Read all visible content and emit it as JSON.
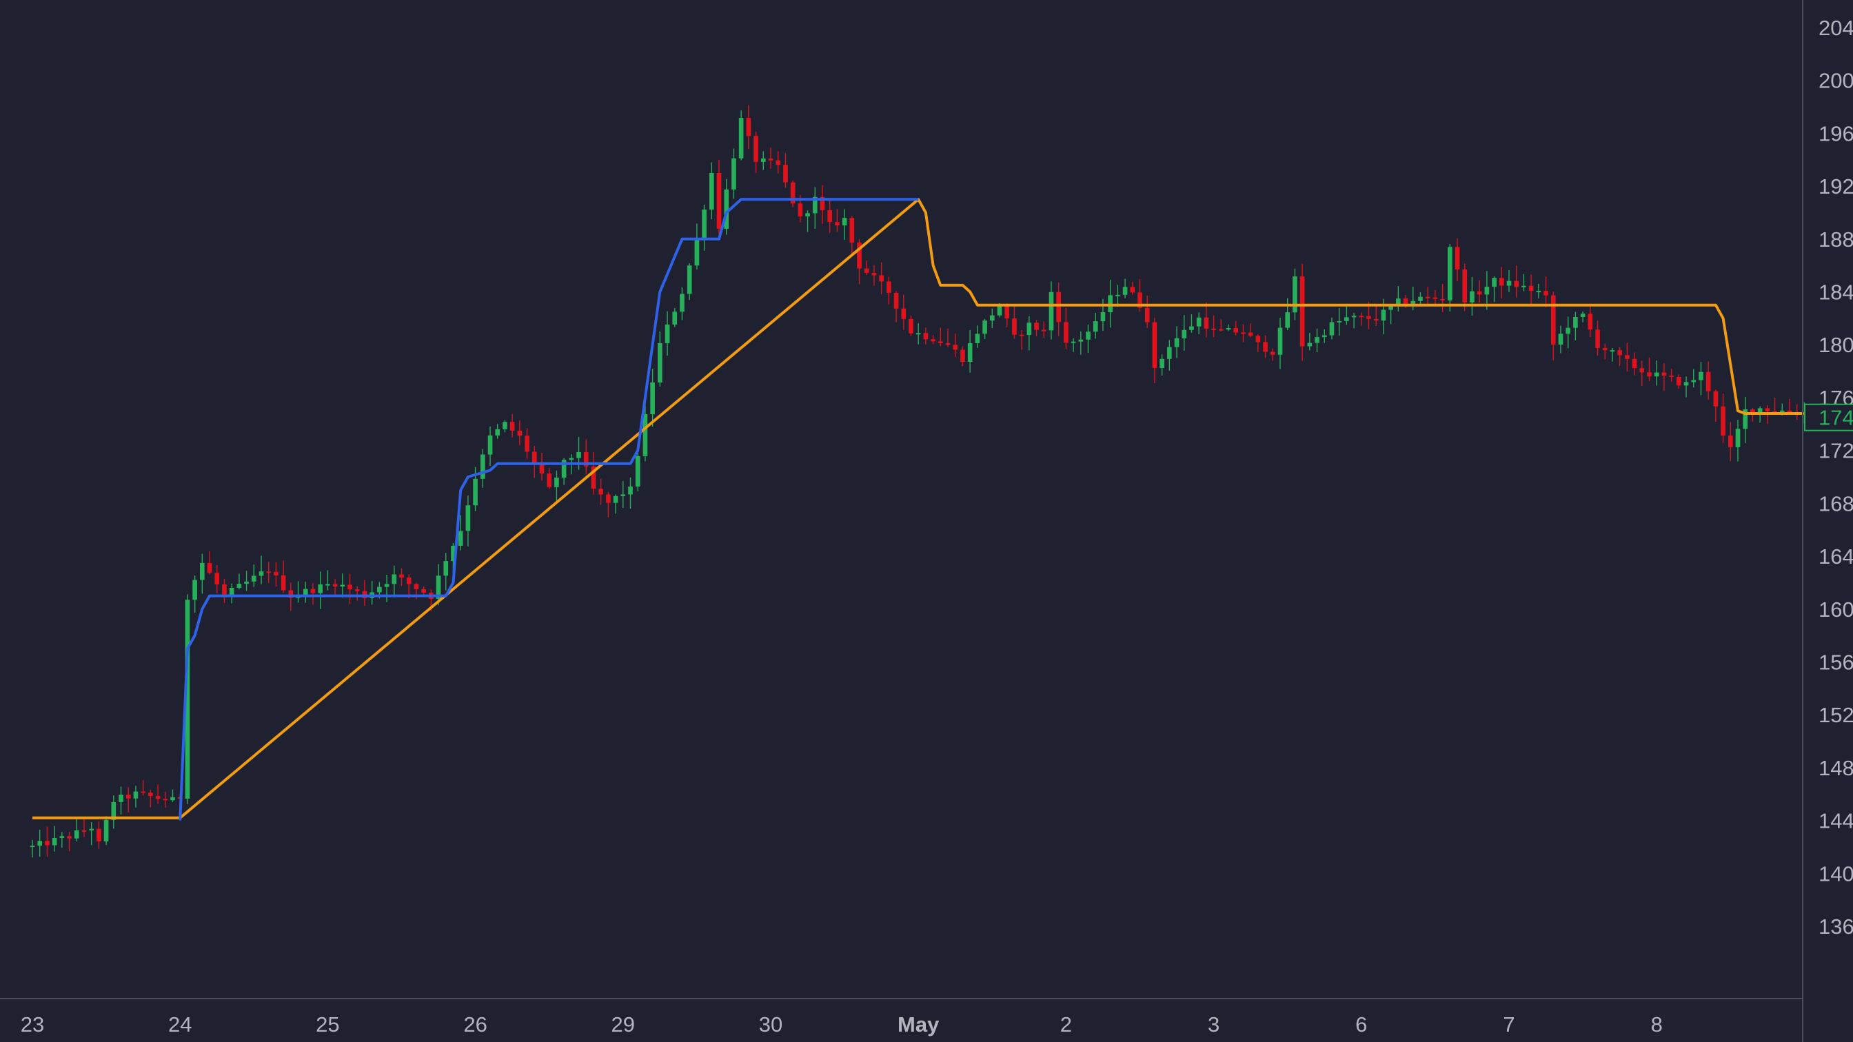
{
  "chart_data": {
    "type": "candlestick",
    "title": "",
    "xlabel": "",
    "ylabel": "",
    "ylim": [
      133,
      206
    ],
    "grid": false,
    "colors": {
      "background": "#1f2130",
      "up": "#26b05a",
      "down": "#e0121c",
      "trail_up": "#2e62e8",
      "trail_down": "#f39c12",
      "axis_text": "#b2b5be",
      "axis_line": "#4a4d5a",
      "price_box": "#26b05a"
    },
    "x_tick_labels": [
      {
        "label": "23",
        "bold": false
      },
      {
        "label": "24",
        "bold": false
      },
      {
        "label": "25",
        "bold": false
      },
      {
        "label": "26",
        "bold": false
      },
      {
        "label": "29",
        "bold": false
      },
      {
        "label": "30",
        "bold": false
      },
      {
        "label": "May",
        "bold": true
      },
      {
        "label": "2",
        "bold": false
      },
      {
        "label": "3",
        "bold": false
      },
      {
        "label": "6",
        "bold": false
      },
      {
        "label": "7",
        "bold": false
      },
      {
        "label": "8",
        "bold": false
      }
    ],
    "y_tick_labels": [
      "204",
      "200",
      "196",
      "192",
      "188",
      "184",
      "180",
      "176",
      "172",
      "168",
      "164",
      "160",
      "156",
      "152",
      "148",
      "144",
      "140",
      "136"
    ],
    "y_tick_values": [
      204,
      200,
      196,
      192,
      188,
      184,
      180,
      176,
      172,
      168,
      164,
      160,
      156,
      152,
      148,
      144,
      140,
      136
    ],
    "last_price_label": "174",
    "last_price_value": 174.5,
    "candles_per_day": 20,
    "candle_anchors": [
      [
        0,
        142
      ],
      [
        5,
        142.8
      ],
      [
        8,
        143.5
      ],
      [
        9,
        142.2
      ],
      [
        11,
        145.5
      ],
      [
        14,
        146
      ],
      [
        19,
        145.5
      ],
      [
        20,
        145.8
      ],
      [
        21,
        161
      ],
      [
        23,
        163.5
      ],
      [
        26,
        161
      ],
      [
        29,
        162
      ],
      [
        32,
        163
      ],
      [
        35,
        161
      ],
      [
        38,
        161.5
      ],
      [
        41,
        162
      ],
      [
        45,
        161
      ],
      [
        49,
        162.5
      ],
      [
        54,
        161
      ],
      [
        56,
        163.8
      ],
      [
        58,
        166
      ],
      [
        60,
        170
      ],
      [
        62,
        173
      ],
      [
        64,
        174
      ],
      [
        66,
        173
      ],
      [
        68,
        171
      ],
      [
        70,
        169
      ],
      [
        72,
        171
      ],
      [
        74,
        172
      ],
      [
        76,
        169
      ],
      [
        78,
        168
      ],
      [
        80,
        168.8
      ],
      [
        81,
        169
      ],
      [
        85,
        180
      ],
      [
        88,
        184
      ],
      [
        90,
        188
      ],
      [
        92,
        193
      ],
      [
        93,
        189
      ],
      [
        96,
        197
      ],
      [
        98,
        194
      ],
      [
        101,
        193.5
      ],
      [
        104,
        189.5
      ],
      [
        106,
        191
      ],
      [
        108,
        189
      ],
      [
        110,
        189.5
      ],
      [
        112,
        186
      ],
      [
        114,
        185
      ],
      [
        116,
        184
      ],
      [
        117,
        183
      ],
      [
        119,
        181
      ],
      [
        122,
        180.5
      ],
      [
        124,
        180
      ],
      [
        126,
        179
      ],
      [
        128,
        181
      ],
      [
        131,
        183
      ],
      [
        133,
        180.5
      ],
      [
        135,
        181.5
      ],
      [
        137,
        181
      ],
      [
        138,
        184
      ],
      [
        140,
        180
      ],
      [
        142,
        180.5
      ],
      [
        144,
        181.5
      ],
      [
        146,
        183.5
      ],
      [
        148,
        184.5
      ],
      [
        150,
        183
      ],
      [
        151,
        182
      ],
      [
        152,
        178
      ],
      [
        154,
        180
      ],
      [
        156,
        181
      ],
      [
        158,
        182
      ],
      [
        160,
        181
      ],
      [
        162,
        181
      ],
      [
        164,
        181
      ],
      [
        166,
        180
      ],
      [
        168,
        179.5
      ],
      [
        170,
        182.5
      ],
      [
        171,
        185
      ],
      [
        172,
        180
      ],
      [
        174,
        180.5
      ],
      [
        176,
        181.5
      ],
      [
        178,
        182
      ],
      [
        182,
        182
      ],
      [
        185,
        183.2
      ],
      [
        188,
        183.5
      ],
      [
        191,
        183.5
      ],
      [
        192,
        187.5
      ],
      [
        194,
        183.5
      ],
      [
        196,
        184
      ],
      [
        198,
        184.8
      ],
      [
        201,
        184.5
      ],
      [
        204,
        184
      ],
      [
        205,
        183.5
      ],
      [
        206,
        180
      ],
      [
        208,
        181.5
      ],
      [
        210,
        182.2
      ],
      [
        212,
        180
      ],
      [
        215,
        179
      ],
      [
        218,
        178
      ],
      [
        221,
        177.5
      ],
      [
        224,
        177
      ],
      [
        226,
        177.8
      ],
      [
        228,
        175.5
      ],
      [
        229,
        173
      ],
      [
        230,
        172
      ],
      [
        232,
        175
      ],
      [
        234,
        175.2
      ],
      [
        237,
        175
      ],
      [
        240,
        174.8
      ],
      [
        243,
        174.5
      ]
    ],
    "trail_up_anchors": [
      [
        20,
        144
      ],
      [
        21,
        157
      ],
      [
        22,
        158
      ],
      [
        23,
        160
      ],
      [
        24,
        161
      ],
      [
        56,
        161
      ],
      [
        57,
        162
      ],
      [
        58,
        169
      ],
      [
        59,
        170
      ],
      [
        62,
        170.5
      ],
      [
        63,
        171
      ],
      [
        81,
        171
      ],
      [
        82,
        172
      ],
      [
        85,
        184
      ],
      [
        88,
        188
      ],
      [
        93,
        188
      ],
      [
        94,
        190
      ],
      [
        96,
        191
      ],
      [
        97,
        191
      ],
      [
        120,
        191
      ]
    ],
    "trail_down_anchors": [
      [
        0,
        144.2
      ],
      [
        20,
        144.2
      ],
      [
        120,
        191
      ],
      [
        121,
        190
      ],
      [
        122,
        186
      ],
      [
        123,
        184.5
      ],
      [
        126,
        184.5
      ],
      [
        127,
        184
      ],
      [
        128,
        183
      ],
      [
        228,
        183
      ],
      [
        229,
        182
      ],
      [
        231,
        175
      ],
      [
        232,
        174.8
      ],
      [
        244,
        174.8
      ]
    ]
  }
}
